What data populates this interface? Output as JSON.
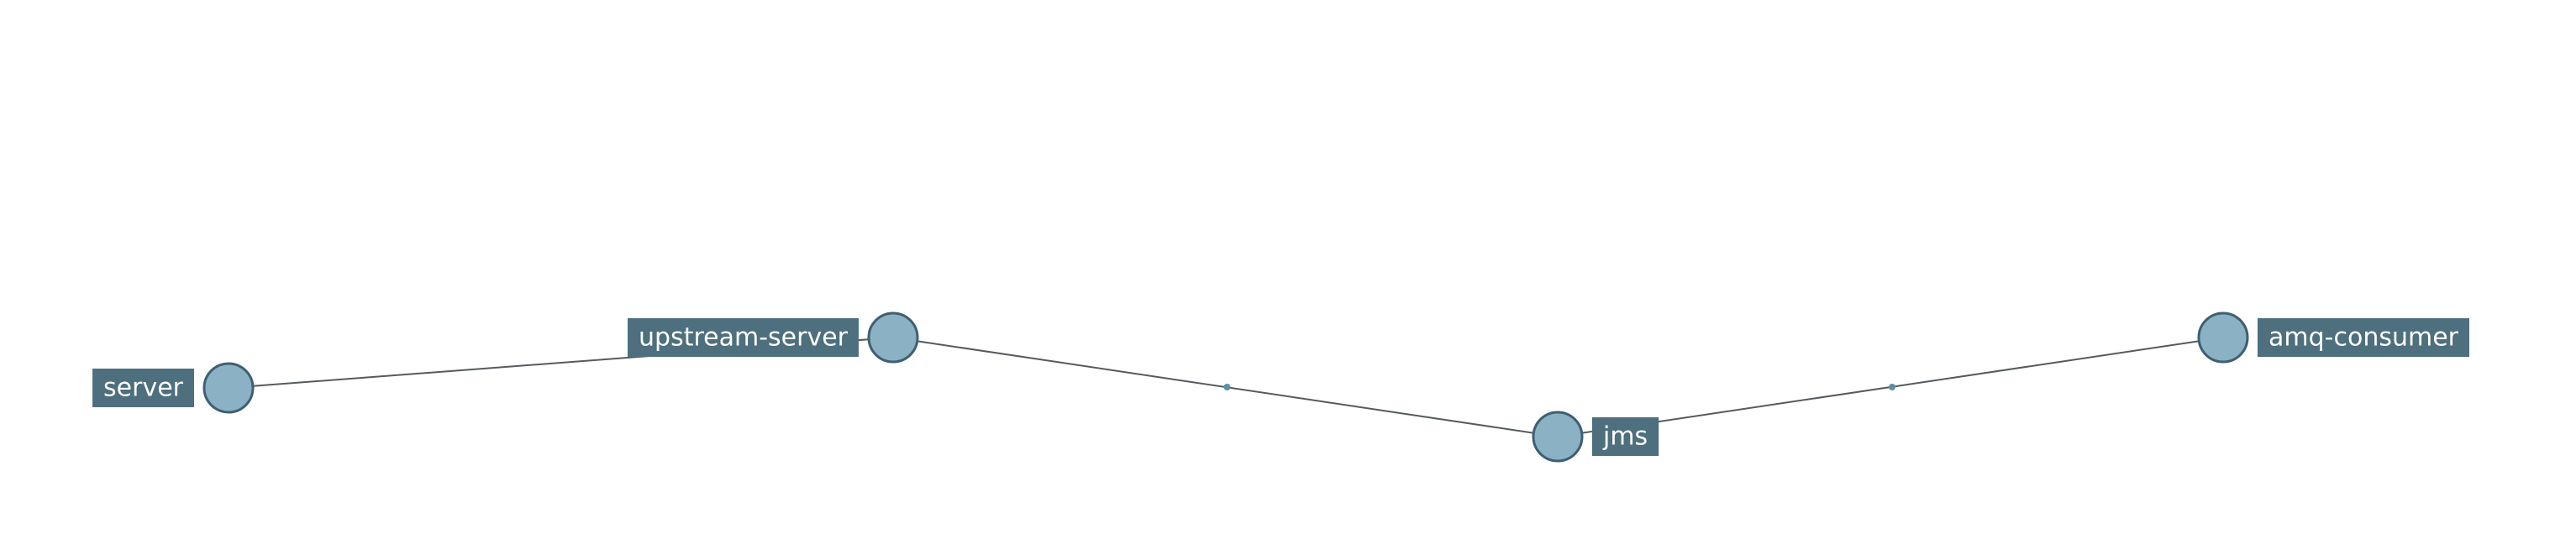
{
  "colors": {
    "node_fill": "#8ab1c4",
    "node_stroke": "#3f5f70",
    "label_bg": "#4d6f7e",
    "label_text": "#ffffff",
    "edge": "#555a5e",
    "edge_dot": "#5d8fa5",
    "background": "#ffffff"
  },
  "nodes": [
    {
      "id": "server",
      "label": "server",
      "label_side": "left"
    },
    {
      "id": "upstream-server",
      "label": "upstream-server",
      "label_side": "left"
    },
    {
      "id": "jms",
      "label": "jms",
      "label_side": "right"
    },
    {
      "id": "amq-consumer",
      "label": "amq-consumer",
      "label_side": "right"
    }
  ],
  "edges": [
    {
      "source": "server",
      "target": "upstream-server",
      "midpoint_marker": false
    },
    {
      "source": "upstream-server",
      "target": "jms",
      "midpoint_marker": true
    },
    {
      "source": "jms",
      "target": "amq-consumer",
      "midpoint_marker": true
    }
  ]
}
